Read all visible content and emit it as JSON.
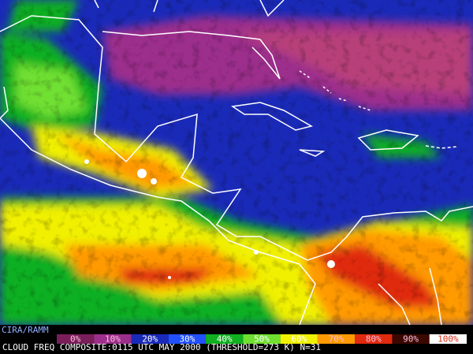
{
  "credit": "CIRA/RAMM",
  "legend": {
    "entries": [
      {
        "label": "0%",
        "color": "#7a1e5a"
      },
      {
        "label": "10%",
        "color": "#9c2f8c"
      },
      {
        "label": "20%",
        "color": "#1a2ab8"
      },
      {
        "label": "30%",
        "color": "#2050ff"
      },
      {
        "label": "40%",
        "color": "#10b020"
      },
      {
        "label": "50%",
        "color": "#70e030"
      },
      {
        "label": "60%",
        "color": "#f0f000"
      },
      {
        "label": "70%",
        "color": "#ff9a00"
      },
      {
        "label": "80%",
        "color": "#e02a10"
      },
      {
        "label": "90%",
        "color": "#3a0800"
      },
      {
        "label": "100%",
        "color": "#ffffff"
      }
    ]
  },
  "caption": "CLOUD FREQ COMPOSITE:0115 UTC MAY 2000 (THRESHOLD=273 K) N=31"
}
